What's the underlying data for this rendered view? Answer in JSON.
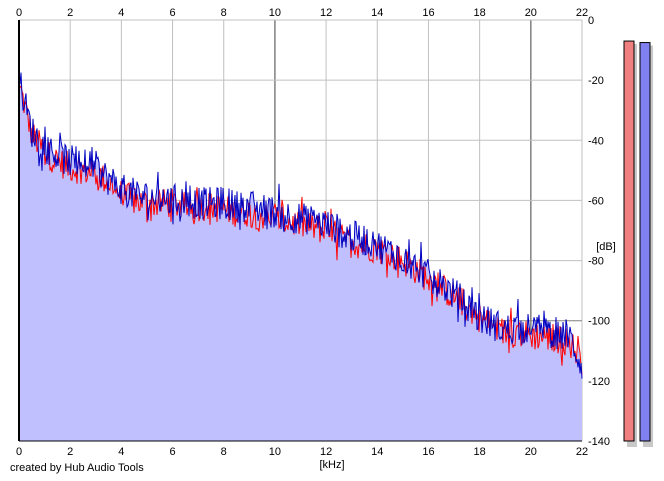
{
  "credit": "created by Hub Audio Tools",
  "colors": {
    "background": "#ffffff",
    "grid": "#c0c0c0",
    "grid_major": "#808080",
    "fill": "#c0c0ff",
    "left_channel": "#ff0000",
    "right_channel": "#0000c0",
    "meter_left": "#f08080",
    "meter_right": "#8080f0",
    "meter_shadow": "#c8c8c8"
  },
  "chart_data": {
    "type": "line",
    "xlabel": "[kHz]",
    "ylabel": "[dB]",
    "xlim": [
      0,
      22
    ],
    "ylim": [
      -140,
      0
    ],
    "x_ticks": [
      "0",
      "2",
      "4",
      "6",
      "8",
      "10",
      "12",
      "14",
      "16",
      "18",
      "20",
      "22"
    ],
    "y_ticks": [
      "0",
      "-20",
      "-40",
      "-60",
      "-80",
      "-100",
      "-120",
      "-140"
    ],
    "grid": true,
    "x": [
      0,
      0.5,
      1,
      1.5,
      2,
      2.5,
      3,
      3.5,
      4,
      4.5,
      5,
      5.5,
      6,
      6.5,
      7,
      7.5,
      8,
      8.5,
      9,
      9.5,
      10,
      10.5,
      11,
      11.5,
      12,
      12.5,
      13,
      13.5,
      14,
      14.5,
      15,
      15.5,
      16,
      16.5,
      17,
      17.5,
      18,
      18.5,
      19,
      19.5,
      20,
      20.5,
      21,
      21.5,
      22
    ],
    "series": [
      {
        "color": "#ff0000",
        "values": [
          -21,
          -38,
          -44,
          -47,
          -49,
          -50,
          -51,
          -54,
          -58,
          -60,
          -61,
          -61,
          -61,
          -62,
          -62,
          -62,
          -63,
          -64,
          -64,
          -65,
          -66,
          -67,
          -68,
          -69,
          -70,
          -72,
          -74,
          -75,
          -76,
          -78,
          -80,
          -83,
          -86,
          -89,
          -92,
          -95,
          -99,
          -102,
          -104,
          -104,
          -105,
          -105,
          -106,
          -107,
          -113
        ]
      },
      {
        "color": "#0000c0",
        "values": [
          -20,
          -37,
          -42,
          -45,
          -47,
          -48,
          -49,
          -53,
          -56,
          -58,
          -59,
          -59,
          -60,
          -60,
          -61,
          -61,
          -61,
          -62,
          -62,
          -63,
          -64,
          -65,
          -66,
          -67,
          -68,
          -70,
          -72,
          -73,
          -75,
          -77,
          -79,
          -82,
          -85,
          -88,
          -91,
          -95,
          -99,
          -101,
          -103,
          -102,
          -103,
          -103,
          -104,
          -105,
          -115
        ]
      }
    ],
    "level_meters": [
      {
        "color": "#f08080",
        "value": -7
      },
      {
        "color": "#8080f0",
        "value": -7.5
      }
    ]
  }
}
